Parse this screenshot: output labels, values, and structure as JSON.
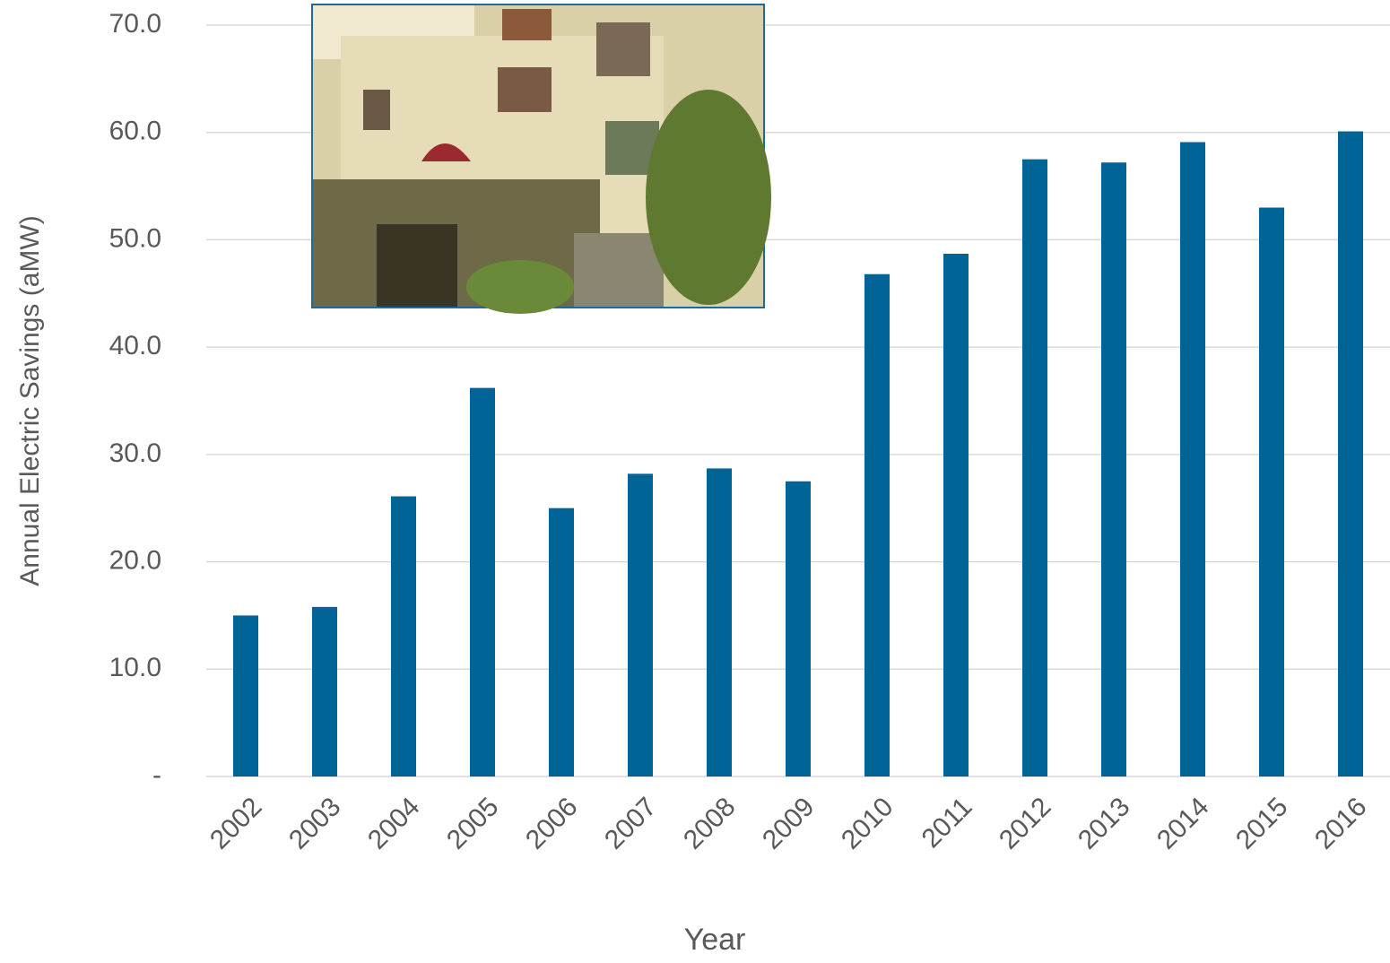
{
  "chart_data": {
    "type": "bar",
    "y_label": "Annual Electric Savings (aMW)",
    "x_label": "Year",
    "categories": [
      "2002",
      "2003",
      "2004",
      "2005",
      "2006",
      "2007",
      "2008",
      "2009",
      "2010",
      "2011",
      "2012",
      "2013",
      "2014",
      "2015",
      "2016"
    ],
    "values": [
      15.0,
      15.8,
      26.1,
      36.2,
      25.0,
      28.2,
      28.7,
      27.5,
      46.8,
      48.7,
      57.5,
      57.2,
      59.1,
      53.0,
      60.1
    ],
    "color": "#006496",
    "ylim": [
      0,
      70
    ],
    "yticks": [
      {
        "value": 0,
        "label": "-"
      },
      {
        "value": 10,
        "label": "10.0"
      },
      {
        "value": 20,
        "label": "20.0"
      },
      {
        "value": 30,
        "label": "30.0"
      },
      {
        "value": 40,
        "label": "40.0"
      },
      {
        "value": 50,
        "label": "50.0"
      },
      {
        "value": 60,
        "label": "60.0"
      },
      {
        "value": 70,
        "label": "70.0"
      }
    ],
    "grid": true
  }
}
